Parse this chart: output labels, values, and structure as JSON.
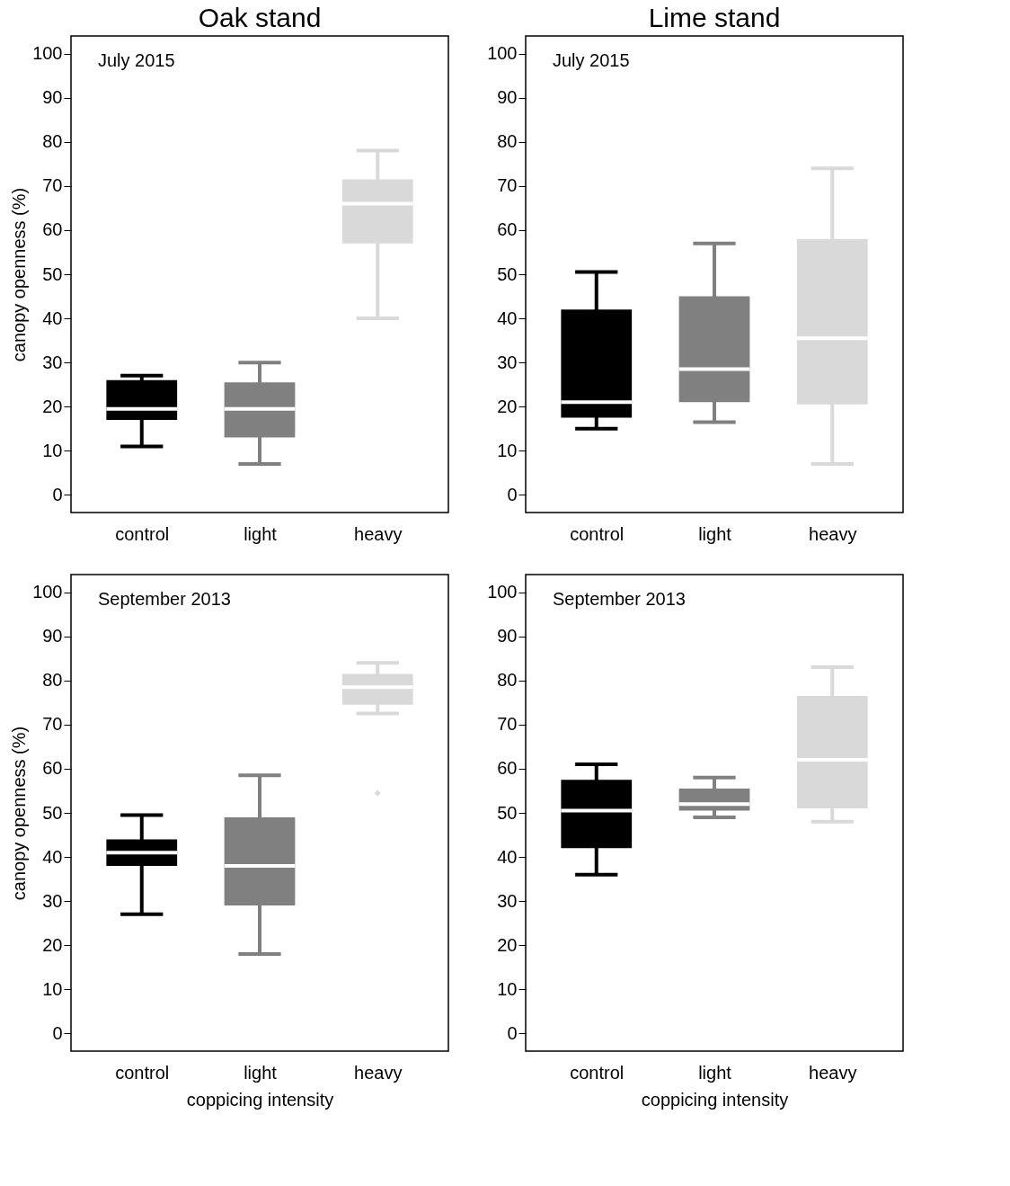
{
  "chart_data": [
    {
      "type": "box",
      "title": "Oak stand",
      "ylabel": "canopy openness (%)",
      "annotations": [
        "July 2015"
      ],
      "categories": [
        "control",
        "light",
        "heavy"
      ],
      "colors": [
        "#000000",
        "#808080",
        "#d9d9d9"
      ],
      "ylim": [
        -4,
        104
      ],
      "yticks": [
        0,
        10,
        20,
        30,
        40,
        50,
        60,
        70,
        80,
        90,
        100
      ],
      "grid": false,
      "boxes": [
        {
          "low": 11,
          "q1": 17,
          "median": 19.5,
          "q3": 26,
          "high": 27
        },
        {
          "low": 7,
          "q1": 13,
          "median": 19.5,
          "q3": 25.5,
          "high": 30
        },
        {
          "low": 40,
          "q1": 57,
          "median": 66,
          "q3": 71.5,
          "high": 78
        }
      ]
    },
    {
      "type": "box",
      "title": "Lime stand",
      "annotations": [
        "July 2015"
      ],
      "categories": [
        "control",
        "light",
        "heavy"
      ],
      "colors": [
        "#000000",
        "#808080",
        "#d9d9d9"
      ],
      "ylim": [
        -4,
        104
      ],
      "yticks": [
        0,
        10,
        20,
        30,
        40,
        50,
        60,
        70,
        80,
        90,
        100
      ],
      "grid": false,
      "boxes": [
        {
          "low": 15,
          "q1": 17.5,
          "median": 21,
          "q3": 42,
          "high": 50.5
        },
        {
          "low": 16.5,
          "q1": 21,
          "median": 28.5,
          "q3": 45,
          "high": 57
        },
        {
          "low": 7,
          "q1": 20.5,
          "median": 35.5,
          "q3": 58,
          "high": 74
        }
      ]
    },
    {
      "type": "box",
      "xlabel": "coppicing intensity",
      "ylabel": "canopy openness (%)",
      "annotations": [
        "September 2013"
      ],
      "categories": [
        "control",
        "light",
        "heavy"
      ],
      "colors": [
        "#000000",
        "#808080",
        "#d9d9d9"
      ],
      "ylim": [
        -4,
        104
      ],
      "yticks": [
        0,
        10,
        20,
        30,
        40,
        50,
        60,
        70,
        80,
        90,
        100
      ],
      "grid": false,
      "boxes": [
        {
          "low": 27,
          "q1": 38,
          "median": 41,
          "q3": 44,
          "high": 49.5
        },
        {
          "low": 18,
          "q1": 29,
          "median": 38,
          "q3": 49,
          "high": 58.5
        },
        {
          "low": 72.5,
          "q1": 74.5,
          "median": 78.5,
          "q3": 81.5,
          "high": 84,
          "outliers": [
            54.5
          ]
        }
      ]
    },
    {
      "type": "box",
      "xlabel": "coppicing intensity",
      "annotations": [
        "September 2013"
      ],
      "categories": [
        "control",
        "light",
        "heavy"
      ],
      "colors": [
        "#000000",
        "#808080",
        "#d9d9d9"
      ],
      "ylim": [
        -4,
        104
      ],
      "yticks": [
        0,
        10,
        20,
        30,
        40,
        50,
        60,
        70,
        80,
        90,
        100
      ],
      "grid": false,
      "boxes": [
        {
          "low": 36,
          "q1": 42,
          "median": 50.5,
          "q3": 57.5,
          "high": 61
        },
        {
          "low": 49,
          "q1": 50.5,
          "median": 52,
          "q3": 55.5,
          "high": 58
        },
        {
          "low": 48,
          "q1": 51,
          "median": 62,
          "q3": 76.5,
          "high": 83
        }
      ]
    }
  ]
}
